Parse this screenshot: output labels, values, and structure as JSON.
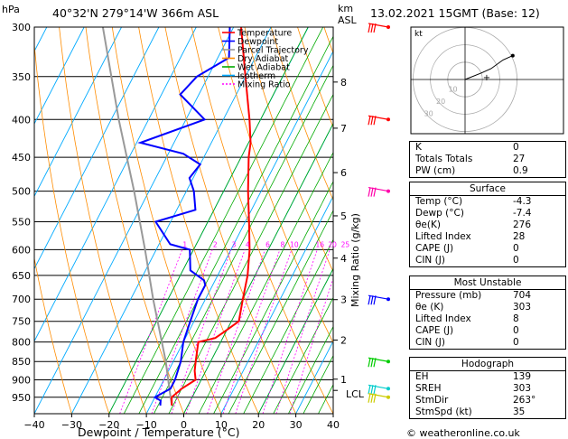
{
  "header": {
    "hpa_label": "hPa",
    "location": "40°32'N  279°14'W  366m  ASL",
    "km_label": "km",
    "asl_label": "ASL",
    "datetime": "13.02.2021  15GMT  (Base: 12)",
    "credit": "© weatheronline.co.uk"
  },
  "chart_data": {
    "type": "skew-t log-p",
    "xlabel": "Dewpoint  /  Temperature  (°C)",
    "ylabel_right": "Mixing Ratio (g/kg)",
    "x_ticks": [
      -40,
      -30,
      -20,
      -10,
      0,
      10,
      20,
      30,
      40
    ],
    "x_tick_labels": [
      "−40",
      "−30",
      "−20",
      "−10",
      "0",
      "10",
      "20",
      "30",
      "40"
    ],
    "pressure_levels": [
      300,
      350,
      400,
      450,
      500,
      550,
      600,
      650,
      700,
      750,
      800,
      850,
      900,
      950
    ],
    "km_ticks": [
      {
        "km": "1",
        "p": 898
      },
      {
        "km": "2",
        "p": 795
      },
      {
        "km": "3",
        "p": 701
      },
      {
        "km": "4",
        "p": 616
      },
      {
        "km": "5",
        "p": 540
      },
      {
        "km": "6",
        "p": 472
      },
      {
        "km": "7",
        "p": 411
      },
      {
        "km": "8",
        "p": 356
      }
    ],
    "lcl_label": "LCL",
    "lcl_p": 930,
    "mixing_ratio_labels": [
      "1",
      "2",
      "3",
      "4",
      "6",
      "8",
      "10",
      "16",
      "20",
      "25"
    ],
    "mixing_ratio_values": [
      1,
      2,
      3,
      4,
      6,
      8,
      10,
      16,
      20,
      25
    ],
    "legend": [
      {
        "name": "Temperature",
        "color": "#ff0000"
      },
      {
        "name": "Dewpoint",
        "color": "#0000ff"
      },
      {
        "name": "Parcel Trajectory",
        "color": "#999999"
      },
      {
        "name": "Dry Adiabat",
        "color": "#ff8c00"
      },
      {
        "name": "Wet Adiabat",
        "color": "#00aa00"
      },
      {
        "name": "Isotherm",
        "color": "#00aaff"
      },
      {
        "name": "Mixing Ratio",
        "color": "#ff00ff"
      }
    ],
    "temperature": [
      [
        975,
        -4.3
      ],
      [
        950,
        -5.5
      ],
      [
        925,
        -4
      ],
      [
        900,
        -1.5
      ],
      [
        875,
        -3
      ],
      [
        850,
        -4
      ],
      [
        825,
        -5
      ],
      [
        800,
        -6
      ],
      [
        790,
        -2
      ],
      [
        775,
        -0.5
      ],
      [
        750,
        2
      ],
      [
        700,
        0
      ],
      [
        650,
        -2
      ],
      [
        600,
        -5
      ],
      [
        550,
        -9
      ],
      [
        500,
        -13.5
      ],
      [
        450,
        -18
      ],
      [
        430,
        -19.5
      ],
      [
        400,
        -23
      ],
      [
        350,
        -30
      ],
      [
        300,
        -38
      ]
    ],
    "dewpoint": [
      [
        975,
        -7.4
      ],
      [
        960,
        -8
      ],
      [
        950,
        -10
      ],
      [
        925,
        -7
      ],
      [
        900,
        -7
      ],
      [
        850,
        -8
      ],
      [
        800,
        -10
      ],
      [
        750,
        -11
      ],
      [
        700,
        -12
      ],
      [
        670,
        -12
      ],
      [
        660,
        -13
      ],
      [
        640,
        -18
      ],
      [
        600,
        -21
      ],
      [
        590,
        -27
      ],
      [
        550,
        -34
      ],
      [
        530,
        -25
      ],
      [
        500,
        -28
      ],
      [
        480,
        -31
      ],
      [
        460,
        -30
      ],
      [
        445,
        -36
      ],
      [
        430,
        -49
      ],
      [
        400,
        -35
      ],
      [
        370,
        -45
      ],
      [
        350,
        -43
      ],
      [
        330,
        -37
      ],
      [
        300,
        -41
      ]
    ],
    "parcel": [
      [
        975,
        -4.3
      ],
      [
        930,
        -7
      ],
      [
        850,
        -12
      ],
      [
        700,
        -24
      ],
      [
        600,
        -33
      ],
      [
        500,
        -44
      ],
      [
        400,
        -58
      ],
      [
        300,
        -75
      ]
    ],
    "wind_barbs": [
      {
        "p": 300,
        "color": "#ff0000"
      },
      {
        "p": 400,
        "color": "#ff0000"
      },
      {
        "p": 500,
        "color": "#ff00aa"
      },
      {
        "p": 700,
        "color": "#0000ff"
      },
      {
        "p": 850,
        "color": "#00cc00"
      },
      {
        "p": 925,
        "color": "#00cccc"
      },
      {
        "p": 950,
        "color": "#cccc00"
      }
    ]
  },
  "hodograph": {
    "label": "kt",
    "ring_labels": [
      "10",
      "20",
      "30"
    ],
    "trace": [
      [
        0,
        0
      ],
      [
        15,
        6
      ],
      [
        24,
        10
      ],
      [
        35,
        18
      ],
      [
        44,
        22
      ]
    ],
    "storm_motion_label": "+"
  },
  "table_top": [
    {
      "label": "K",
      "value": "0"
    },
    {
      "label": "Totals Totals",
      "value": "27"
    },
    {
      "label": "PW (cm)",
      "value": "0.9"
    }
  ],
  "surface": {
    "title": "Surface",
    "rows": [
      {
        "label": "Temp (°C)",
        "value": "-4.3"
      },
      {
        "label": "Dewp (°C)",
        "value": "-7.4"
      },
      {
        "label": "θe(K)",
        "value": "276"
      },
      {
        "label": "Lifted Index",
        "value": "28"
      },
      {
        "label": "CAPE (J)",
        "value": "0"
      },
      {
        "label": "CIN (J)",
        "value": "0"
      }
    ]
  },
  "most_unstable": {
    "title": "Most Unstable",
    "rows": [
      {
        "label": "Pressure (mb)",
        "value": "704"
      },
      {
        "label": "θe (K)",
        "value": "303"
      },
      {
        "label": "Lifted Index",
        "value": "8"
      },
      {
        "label": "CAPE (J)",
        "value": "0"
      },
      {
        "label": "CIN (J)",
        "value": "0"
      }
    ]
  },
  "hodo_table": {
    "title": "Hodograph",
    "rows": [
      {
        "label": "EH",
        "value": "139"
      },
      {
        "label": "SREH",
        "value": "303"
      },
      {
        "label": "StmDir",
        "value": "263°"
      },
      {
        "label": "StmSpd (kt)",
        "value": "35"
      }
    ]
  }
}
